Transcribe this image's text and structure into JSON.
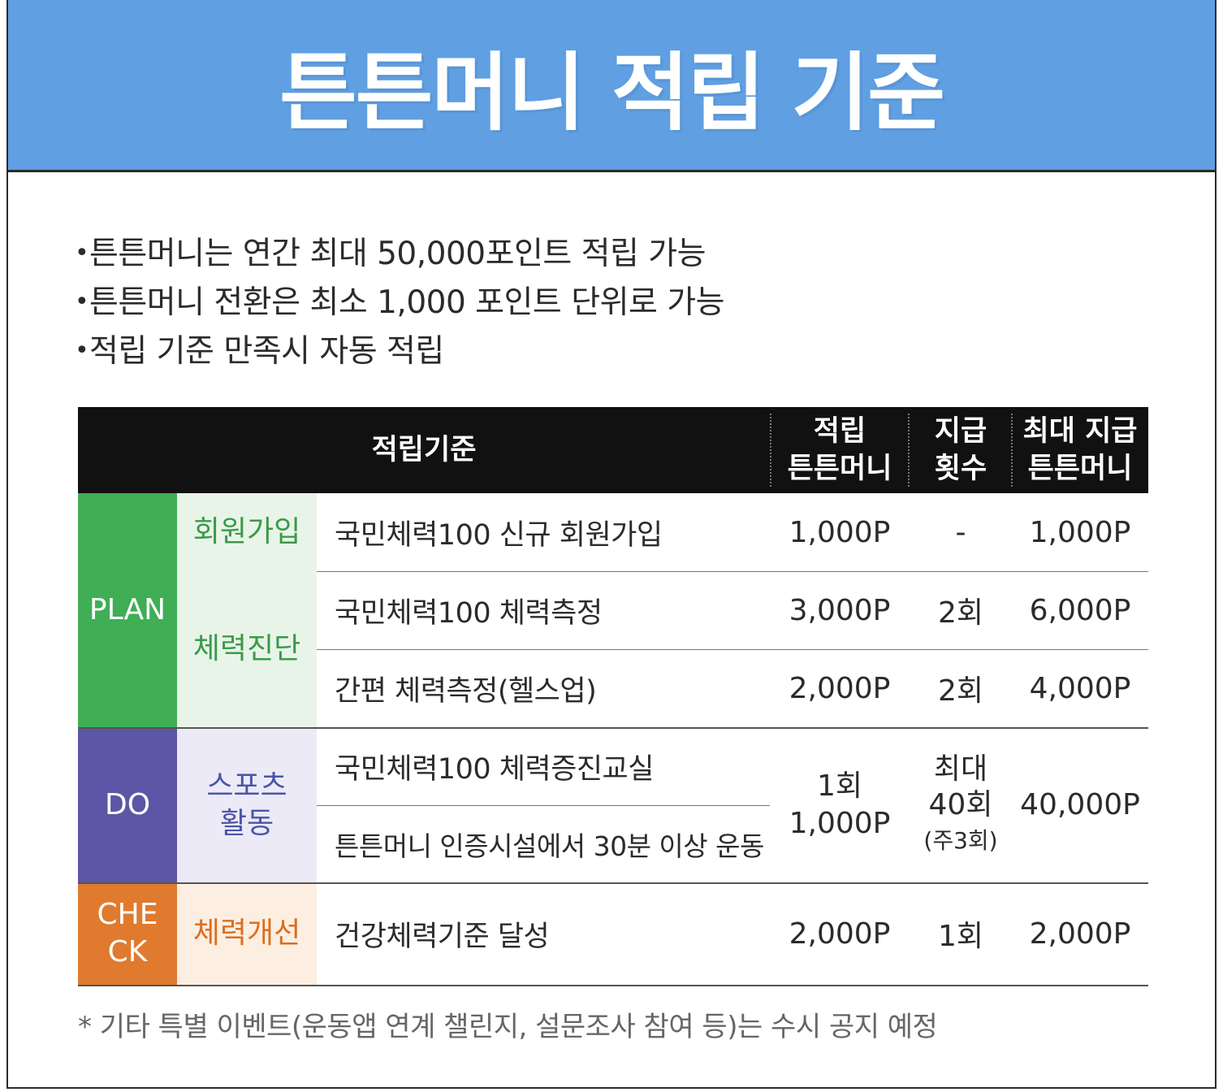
{
  "title": "튼튼머니 적립 기준",
  "bullets": [
    "튼튼머니는 연간 최대 50,000포인트 적립 가능",
    "튼튼머니 전환은 최소 1,000 포인트 단위로 가능",
    "적립 기준 만족시 자동 적립"
  ],
  "table": {
    "headers": {
      "criteria": "적립기준",
      "points_l1": "적립",
      "points_l2": "튼튼머니",
      "count_l1": "지급",
      "count_l2": "횟수",
      "max_l1": "최대 지급",
      "max_l2": "튼튼머니"
    },
    "phases": {
      "plan": "PLAN",
      "do": "DO",
      "check_l1": "CHE",
      "check_l2": "CK"
    },
    "categories": {
      "signup": "회원가입",
      "fitness_test": "체력진단",
      "sports_l1": "스포츠",
      "sports_l2": "활동",
      "improve": "체력개선"
    },
    "rows": [
      {
        "criterion": "국민체력100 신규 회원가입",
        "points": "1,000P",
        "count": "-",
        "max": "1,000P"
      },
      {
        "criterion": "국민체력100 체력측정",
        "points": "3,000P",
        "count": "2회",
        "max": "6,000P"
      },
      {
        "criterion": "간편 체력측정(헬스업)",
        "points": "2,000P",
        "count": "2회",
        "max": "4,000P"
      },
      {
        "criterion": "국민체력100 체력증진교실"
      },
      {
        "criterion": "튼튼머니 인증시설에서 30분 이상 운동"
      },
      {
        "criterion": "건강체력기준 달성",
        "points": "2,000P",
        "count": "1회",
        "max": "2,000P"
      }
    ],
    "do_merged": {
      "points_l1": "1회",
      "points_l2": "1,000P",
      "count_l1": "최대",
      "count_l2": "40회",
      "count_l3": "(주3회)",
      "max": "40,000P"
    }
  },
  "footnote": "* 기타 특별 이벤트(운동앱 연계 챌린지, 설문조사 참여 등)는 수시 공지 예정",
  "colors": {
    "banner": "#5f9fe2",
    "plan": "#3fae55",
    "plan_light": "#e9f4e8",
    "plan_text": "#3a9a4a",
    "do": "#5b57a6",
    "do_light": "#ebeaf6",
    "do_text": "#4a55a8",
    "check": "#e07a2e",
    "check_light": "#fcefe1",
    "check_text": "#d96f22"
  }
}
